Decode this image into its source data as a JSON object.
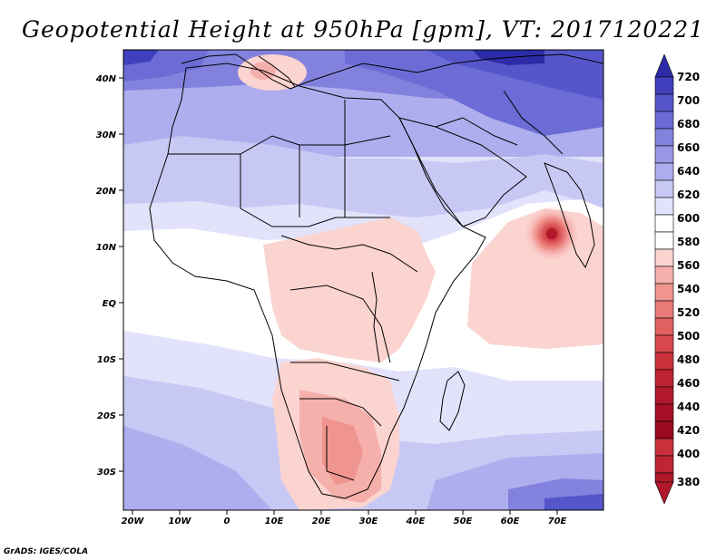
{
  "title": "Geopotential Height at 950hPa [gpm], VT: 2017120221",
  "footer": "GrADS: IGES/COLA",
  "colors": {
    "c380": "#b2182b",
    "c400": "#c9303a",
    "c420": "#d7484c",
    "c440": "#e16060",
    "c460": "#e97a78",
    "c480": "#f09490",
    "c500": "#f5b0ab",
    "c520": "#fbd4d0",
    "c540": "#ffffff",
    "c560": "#e2e2fb",
    "c580": "#c8c8f4",
    "c600": "#aeaeee",
    "c620": "#9898e6",
    "c640": "#8282de",
    "c660": "#6c6cd6",
    "c680": "#5656cb",
    "c700": "#4040bd",
    "c720": "#2c2ca8",
    "border": "#000000"
  },
  "map": {
    "lat_labels": [
      "40N",
      "30N",
      "20N",
      "10N",
      "EQ",
      "10S",
      "20S",
      "30S"
    ],
    "lon_labels": [
      "20W",
      "10W",
      "0",
      "10E",
      "20E",
      "30E",
      "40E",
      "50E",
      "60E",
      "70E"
    ]
  },
  "colorbar": {
    "labels": [
      "720",
      "700",
      "680",
      "660",
      "640",
      "620",
      "600",
      "580",
      "560",
      "540",
      "520",
      "500",
      "480",
      "460",
      "440",
      "420",
      "400",
      "380"
    ]
  }
}
